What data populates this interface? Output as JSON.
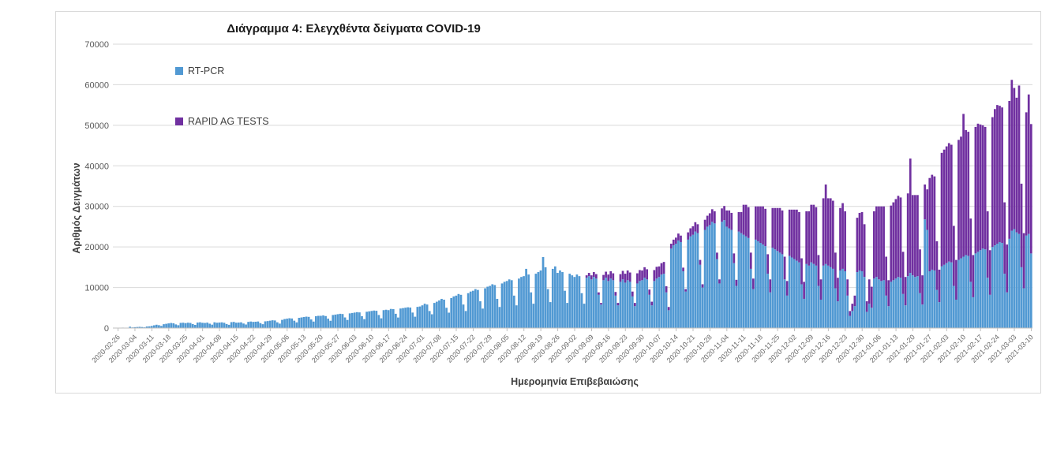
{
  "title": "Διάγραμμα 4: Ελεγχθέντα δείγματα COVID-19",
  "y_axis": {
    "title": "Αριθμός Δειγμάτων"
  },
  "x_axis": {
    "title": "Ημερομηνία Επιβεβαιώσης"
  },
  "legend": [
    {
      "label": "RT-PCR",
      "color": "#5199D3"
    },
    {
      "label": "RAPID AG TESTS",
      "color": "#7030A0"
    }
  ],
  "chart_data": {
    "type": "bar",
    "stacked": true,
    "title": "Διάγραμμα 4: Ελεγχθέντα δείγματα COVID-19",
    "xlabel": "Ημερομηνία Επιβεβαιώσης",
    "ylabel": "Αριθμός Δειγμάτων",
    "ylim": [
      0,
      70000
    ],
    "grid": "horizontal",
    "legend_position": "inside-top-left",
    "x_unit": "day",
    "x_start": "2020-02-26",
    "x_end": "2021-03-10",
    "y_tick_labels": [
      "0",
      "10000",
      "20000",
      "30000",
      "40000",
      "50000",
      "60000",
      "70000"
    ],
    "x_tick_labels": [
      "2020-02-26",
      "2020-03-04",
      "2020-03-11",
      "2020-03-18",
      "2020-03-25",
      "2020-04-01",
      "2020-04-08",
      "2020-04-15",
      "2020-04-22",
      "2020-04-29",
      "2020-05-06",
      "2020-05-13",
      "2020-05-20",
      "2020-05-27",
      "2020-06-03",
      "2020-06-10",
      "2020-06-17",
      "2020-06-24",
      "2020-07-01",
      "2020-07-08",
      "2020-07-15",
      "2020-07-22",
      "2020-07-29",
      "2020-08-05",
      "2020-08-12",
      "2020-08-19",
      "2020-08-26",
      "2020-09-02",
      "2020-09-09",
      "2020-09-16",
      "2020-09-23",
      "2020-09-30",
      "2020-10-07",
      "2020-10-14",
      "2020-10-21",
      "2020-10-28",
      "2020-11-04",
      "2020-11-11",
      "2020-11-18",
      "2020-11-25",
      "2020-12-02",
      "2020-12-09",
      "2020-12-16",
      "2020-12-23",
      "2020-12-30",
      "2021-01-06",
      "2021-01-13",
      "2021-01-20",
      "2021-01-27",
      "2021-02-03",
      "2021-02-10",
      "2021-02-17",
      "2021-02-24",
      "2021-03-03",
      "2021-03-10"
    ],
    "x_tick_interval_days": 7,
    "series": [
      {
        "name": "RT-PCR",
        "color": "#5199D3",
        "values": [
          60,
          90,
          110,
          80,
          50,
          330,
          160,
          220,
          260,
          300,
          250,
          180,
          380,
          420,
          520,
          680,
          820,
          700,
          520,
          950,
          1050,
          1150,
          1250,
          1180,
          900,
          700,
          1280,
          1320,
          1220,
          1320,
          1260,
          980,
          780,
          1360,
          1420,
          1300,
          1260,
          1340,
          1080,
          840,
          1420,
          1310,
          1360,
          1410,
          1300,
          1000,
          800,
          1460,
          1510,
          1320,
          1360,
          1410,
          1120,
          880,
          1520,
          1610,
          1520,
          1560,
          1620,
          1220,
          950,
          1660,
          1720,
          1820,
          1920,
          1870,
          1420,
          1100,
          2020,
          2220,
          2320,
          2420,
          2360,
          1820,
          1400,
          2520,
          2620,
          2720,
          2820,
          2760,
          2120,
          1600,
          2920,
          3020,
          3020,
          3120,
          2960,
          2320,
          1800,
          3220,
          3320,
          3420,
          3520,
          3460,
          2620,
          2000,
          3620,
          3720,
          3820,
          3920,
          3860,
          2920,
          2200,
          4020,
          4120,
          4220,
          4320,
          4260,
          3220,
          2400,
          4420,
          4520,
          4420,
          4720,
          4660,
          3520,
          2600,
          4820,
          4920,
          5020,
          5120,
          5060,
          3820,
          2800,
          5220,
          5320,
          5600,
          6000,
          5800,
          4200,
          3400,
          6200,
          6500,
          6800,
          7200,
          7000,
          5000,
          3800,
          7400,
          7800,
          8000,
          8400,
          8200,
          5800,
          4200,
          8600,
          9000,
          9200,
          9600,
          9400,
          6600,
          4800,
          9800,
          10200,
          10400,
          10800,
          10600,
          7200,
          5200,
          11000,
          11400,
          11600,
          12000,
          11800,
          8000,
          5600,
          12200,
          12600,
          12800,
          14600,
          13200,
          8800,
          6000,
          13400,
          13800,
          14200,
          17500,
          15000,
          9600,
          6400,
          14600,
          15200,
          13600,
          14200,
          13800,
          9200,
          6200,
          13400,
          13000,
          12600,
          13200,
          12800,
          8600,
          6000,
          12400,
          12800,
          12000,
          12600,
          12200,
          8200,
          5800,
          11800,
          12400,
          11600,
          12200,
          11800,
          8000,
          5600,
          11400,
          12000,
          11200,
          11800,
          11400,
          7800,
          5400,
          11000,
          11600,
          11800,
          12400,
          12000,
          8200,
          5600,
          11600,
          12200,
          12600,
          13200,
          13400,
          8800,
          4400,
          19600,
          20400,
          20800,
          21600,
          21200,
          14000,
          9000,
          21800,
          22600,
          23000,
          23800,
          23400,
          15600,
          10000,
          24200,
          25000,
          25400,
          26200,
          25800,
          17000,
          11000,
          26200,
          26600,
          25000,
          24600,
          24200,
          16000,
          10400,
          23800,
          23400,
          23000,
          22600,
          22200,
          14600,
          9600,
          21800,
          21400,
          21000,
          20600,
          20200,
          13400,
          8800,
          19800,
          19400,
          19000,
          18600,
          18200,
          12000,
          8000,
          17800,
          17400,
          17000,
          16600,
          16200,
          10800,
          7200,
          15800,
          15400,
          16200,
          15800,
          15400,
          10400,
          7000,
          15400,
          15800,
          15400,
          15000,
          14600,
          9800,
          6600,
          14200,
          14600,
          14000,
          8000,
          3000,
          4200,
          5400,
          13800,
          14200,
          14000,
          12600,
          4000,
          6000,
          5000,
          12200,
          12600,
          12000,
          11600,
          11800,
          8000,
          5400,
          11400,
          11800,
          12200,
          12600,
          12400,
          8400,
          5600,
          12800,
          13600,
          13000,
          12600,
          12800,
          8600,
          5800,
          26800,
          24200,
          14000,
          14400,
          14200,
          9400,
          6400,
          15200,
          15600,
          16000,
          16400,
          16200,
          10400,
          7000,
          16800,
          17200,
          17600,
          18000,
          17800,
          11400,
          7600,
          18400,
          18800,
          19200,
          19600,
          19400,
          12400,
          8200,
          20000,
          20400,
          20800,
          21200,
          21000,
          13400,
          8800,
          22000,
          24000,
          24400,
          23600,
          23200,
          15000,
          9800,
          22800,
          23200,
          18400
        ]
      },
      {
        "name": "RAPID AG TESTS",
        "color": "#7030A0",
        "values": [
          0,
          0,
          0,
          0,
          0,
          0,
          0,
          0,
          0,
          0,
          0,
          0,
          0,
          0,
          0,
          0,
          0,
          0,
          0,
          0,
          0,
          0,
          0,
          0,
          0,
          0,
          0,
          0,
          0,
          0,
          0,
          0,
          0,
          0,
          0,
          0,
          0,
          0,
          0,
          0,
          0,
          0,
          0,
          0,
          0,
          0,
          0,
          0,
          0,
          0,
          0,
          0,
          0,
          0,
          0,
          0,
          0,
          0,
          0,
          0,
          0,
          0,
          0,
          0,
          0,
          0,
          0,
          0,
          0,
          0,
          0,
          0,
          0,
          0,
          0,
          0,
          0,
          0,
          0,
          0,
          0,
          0,
          0,
          0,
          0,
          0,
          0,
          0,
          0,
          0,
          0,
          0,
          0,
          0,
          0,
          0,
          0,
          0,
          0,
          0,
          0,
          0,
          0,
          0,
          0,
          0,
          0,
          0,
          0,
          0,
          0,
          0,
          0,
          0,
          0,
          0,
          0,
          0,
          0,
          0,
          0,
          0,
          0,
          0,
          0,
          0,
          0,
          0,
          0,
          0,
          0,
          0,
          0,
          0,
          0,
          0,
          0,
          0,
          0,
          0,
          0,
          0,
          0,
          0,
          0,
          0,
          0,
          0,
          0,
          0,
          0,
          0,
          0,
          0,
          0,
          0,
          0,
          0,
          0,
          0,
          0,
          0,
          0,
          0,
          0,
          0,
          0,
          0,
          0,
          0,
          0,
          0,
          0,
          0,
          0,
          0,
          0,
          0,
          0,
          0,
          0,
          0,
          0,
          0,
          0,
          0,
          0,
          0,
          0,
          0,
          0,
          0,
          0,
          0,
          600,
          800,
          1000,
          1200,
          1100,
          600,
          400,
          1300,
          1500,
          1600,
          1800,
          1700,
          900,
          600,
          1900,
          2100,
          2200,
          2400,
          2300,
          1200,
          800,
          2500,
          2700,
          2400,
          2600,
          2500,
          1300,
          900,
          2700,
          2900,
          2600,
          2800,
          2900,
          1500,
          800,
          1200,
          1400,
          1500,
          1700,
          1600,
          900,
          600,
          1800,
          2000,
          2100,
          2300,
          2200,
          1200,
          800,
          2500,
          2700,
          2900,
          3100,
          3000,
          1600,
          1000,
          3300,
          3500,
          4000,
          4400,
          4200,
          2400,
          1500,
          4800,
          5200,
          7400,
          7800,
          7600,
          4000,
          2600,
          8200,
          8600,
          9000,
          9400,
          9200,
          4800,
          3200,
          9800,
          10200,
          10600,
          11000,
          10800,
          5600,
          3600,
          11400,
          11800,
          12200,
          12600,
          12400,
          6400,
          4200,
          13000,
          13400,
          14200,
          14600,
          14400,
          7600,
          5000,
          16600,
          19600,
          16600,
          17000,
          16800,
          8800,
          5800,
          15400,
          16200,
          14800,
          4000,
          1200,
          1800,
          2600,
          13400,
          14200,
          14600,
          13000,
          2600,
          6000,
          5200,
          16600,
          17400,
          18000,
          18400,
          18200,
          9600,
          6400,
          18800,
          19200,
          19600,
          20000,
          19800,
          10400,
          7000,
          20400,
          28200,
          19800,
          20200,
          20000,
          10800,
          7200,
          8600,
          10000,
          23000,
          23400,
          23200,
          12000,
          8000,
          28000,
          28400,
          28800,
          29200,
          29000,
          14800,
          9800,
          29600,
          30000,
          35200,
          30800,
          30600,
          15600,
          10400,
          31200,
          31600,
          31000,
          30400,
          30200,
          16400,
          11000,
          32000,
          33600,
          34200,
          33600,
          33400,
          17600,
          11800,
          34000,
          37200,
          34800,
          33200,
          36600,
          20600,
          13600,
          30400,
          34400,
          31900
        ]
      }
    ]
  }
}
